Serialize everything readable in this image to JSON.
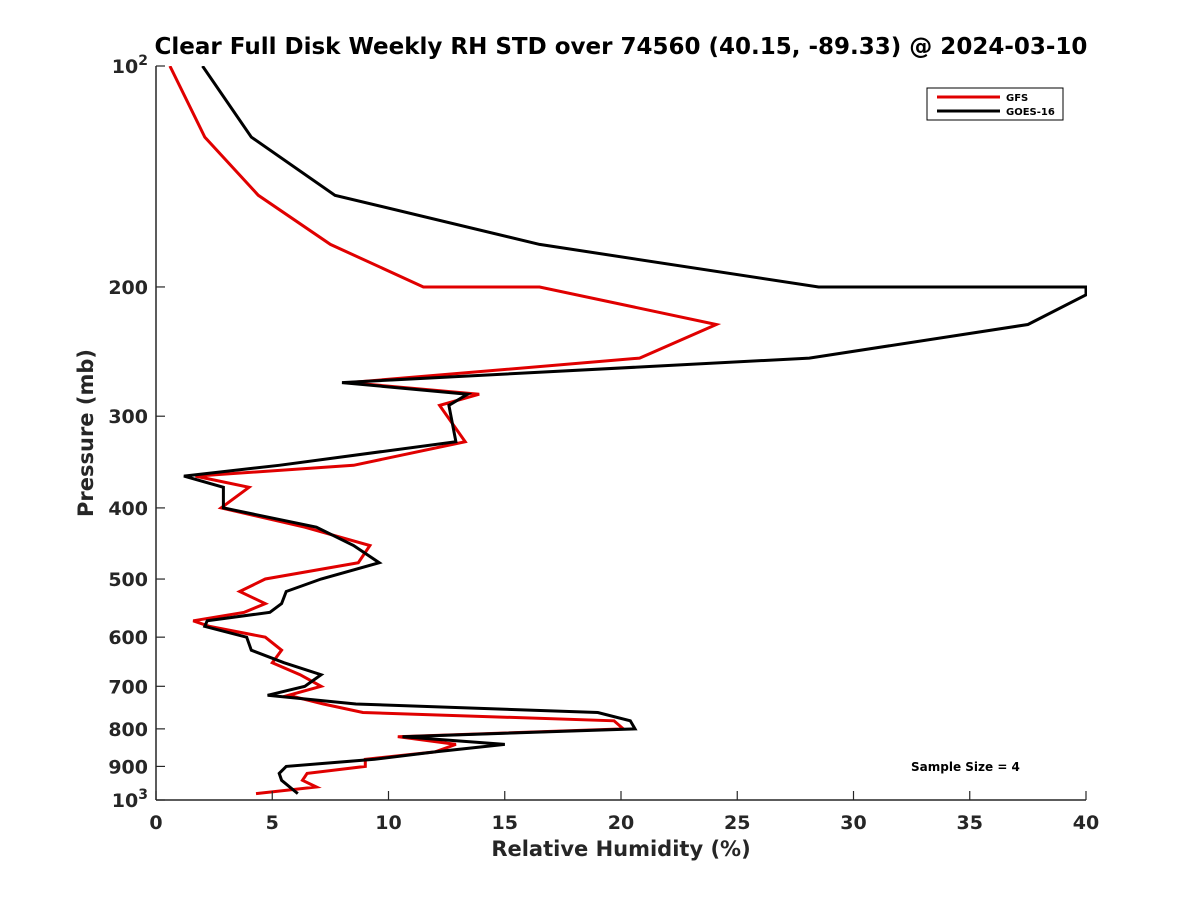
{
  "chart_data": {
    "type": "line",
    "title": "Clear Full Disk Weekly RH STD over 74560 (40.15, -89.33) @ 2024-03-10",
    "xlabel": "Relative Humidity (%)",
    "ylabel": "Pressure (mb)",
    "xlim": [
      0,
      40
    ],
    "ylim": [
      100,
      1000
    ],
    "y_scale": "log",
    "y_reversed": true,
    "xticks": [
      0,
      5,
      10,
      15,
      20,
      25,
      30,
      35,
      40
    ],
    "xtick_labels": [
      "0",
      "5",
      "10",
      "15",
      "20",
      "25",
      "30",
      "35",
      "40"
    ],
    "yticks": [
      100,
      200,
      300,
      400,
      500,
      600,
      700,
      800,
      900,
      1000
    ],
    "ytick_labels": [
      {
        "base": "10",
        "exp": "2"
      },
      {
        "base": "200",
        "exp": ""
      },
      {
        "base": "300",
        "exp": ""
      },
      {
        "base": "400",
        "exp": ""
      },
      {
        "base": "500",
        "exp": ""
      },
      {
        "base": "600",
        "exp": ""
      },
      {
        "base": "700",
        "exp": ""
      },
      {
        "base": "800",
        "exp": ""
      },
      {
        "base": "900",
        "exp": ""
      },
      {
        "base": "10",
        "exp": "3"
      }
    ],
    "grid": false,
    "legend_position": "top-right",
    "series": [
      {
        "name": "GFS",
        "color": "#e00000",
        "points": [
          [
            0.6,
            100
          ],
          [
            2.1,
            125
          ],
          [
            4.4,
            150
          ],
          [
            7.5,
            175
          ],
          [
            11.5,
            200
          ],
          [
            16.5,
            200
          ],
          [
            24.1,
            225
          ],
          [
            20.8,
            250
          ],
          [
            8.3,
            270
          ],
          [
            13.9,
            280
          ],
          [
            12.2,
            290
          ],
          [
            13.3,
            325
          ],
          [
            8.5,
            350
          ],
          [
            1.7,
            362
          ],
          [
            4.0,
            375
          ],
          [
            2.8,
            400
          ],
          [
            6.4,
            425
          ],
          [
            9.2,
            450
          ],
          [
            8.7,
            475
          ],
          [
            4.7,
            500
          ],
          [
            3.6,
            520
          ],
          [
            4.7,
            540
          ],
          [
            3.8,
            555
          ],
          [
            1.6,
            570
          ],
          [
            2.3,
            580
          ],
          [
            4.7,
            600
          ],
          [
            5.4,
            625
          ],
          [
            5.0,
            650
          ],
          [
            6.2,
            675
          ],
          [
            7.1,
            700
          ],
          [
            5.7,
            720
          ],
          [
            7.2,
            740
          ],
          [
            8.9,
            760
          ],
          [
            19.7,
            780
          ],
          [
            20.1,
            800
          ],
          [
            10.4,
            820
          ],
          [
            12.9,
            840
          ],
          [
            12.0,
            860
          ],
          [
            9.0,
            880
          ],
          [
            9.0,
            900
          ],
          [
            6.5,
            920
          ],
          [
            6.3,
            940
          ],
          [
            6.9,
            960
          ],
          [
            4.3,
            980
          ]
        ]
      },
      {
        "name": "GOES-16",
        "color": "#000000",
        "points": [
          [
            2.0,
            100
          ],
          [
            4.1,
            125
          ],
          [
            7.7,
            150
          ],
          [
            16.5,
            175
          ],
          [
            28.5,
            200
          ],
          [
            40.0,
            200
          ],
          [
            40.0,
            205
          ],
          [
            37.5,
            225
          ],
          [
            28.1,
            250
          ],
          [
            8.0,
            270
          ],
          [
            13.4,
            280
          ],
          [
            12.6,
            290
          ],
          [
            12.9,
            325
          ],
          [
            5.3,
            350
          ],
          [
            1.2,
            362
          ],
          [
            2.9,
            375
          ],
          [
            2.9,
            400
          ],
          [
            6.9,
            425
          ],
          [
            8.5,
            450
          ],
          [
            9.6,
            475
          ],
          [
            7.1,
            500
          ],
          [
            5.6,
            520
          ],
          [
            5.4,
            540
          ],
          [
            4.9,
            555
          ],
          [
            2.2,
            570
          ],
          [
            2.1,
            580
          ],
          [
            3.9,
            600
          ],
          [
            4.1,
            625
          ],
          [
            5.5,
            650
          ],
          [
            7.1,
            675
          ],
          [
            6.4,
            700
          ],
          [
            4.8,
            720
          ],
          [
            8.6,
            740
          ],
          [
            19.0,
            760
          ],
          [
            20.4,
            780
          ],
          [
            20.6,
            800
          ],
          [
            10.6,
            820
          ],
          [
            15.0,
            840
          ],
          [
            12.0,
            860
          ],
          [
            9.4,
            880
          ],
          [
            5.6,
            900
          ],
          [
            5.3,
            920
          ],
          [
            5.4,
            940
          ],
          [
            6.1,
            980
          ]
        ]
      }
    ],
    "annotation": "Sample Size = 4"
  }
}
